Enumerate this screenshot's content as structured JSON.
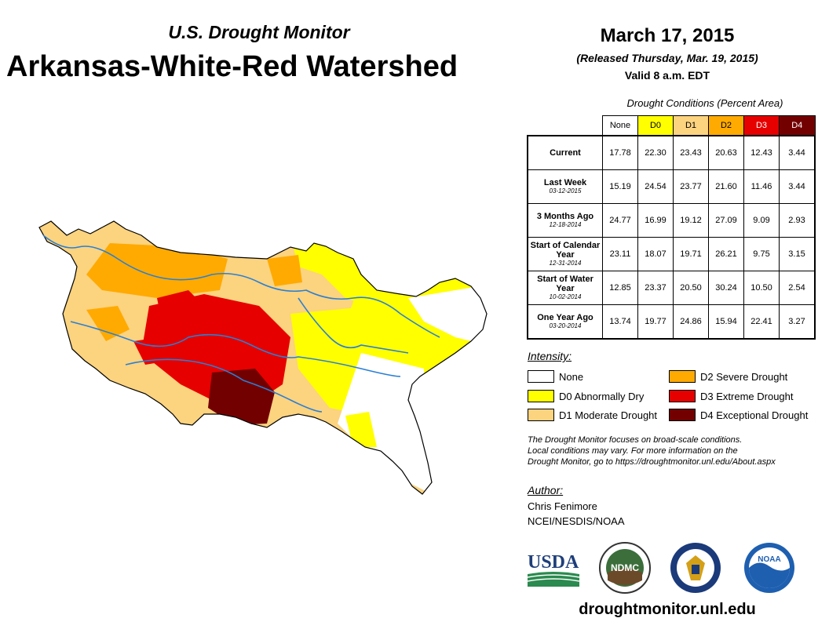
{
  "header": {
    "subtitle": "U.S. Drought Monitor",
    "title": "Arkansas-White-Red Watershed",
    "date": "March 17, 2015",
    "released": "(Released Thursday, Mar. 19, 2015)",
    "valid": "Valid 8 a.m. EDT"
  },
  "table": {
    "caption": "Drought Conditions (Percent Area)",
    "columns": [
      "None",
      "D0",
      "D1",
      "D2",
      "D3",
      "D4"
    ],
    "column_colors": [
      "#ffffff",
      "#ffff00",
      "#fcd37f",
      "#ffaa00",
      "#e60000",
      "#730000"
    ],
    "rows": [
      {
        "label": "Current",
        "sub": "",
        "values": [
          "17.78",
          "22.30",
          "23.43",
          "20.63",
          "12.43",
          "3.44"
        ]
      },
      {
        "label": "Last Week",
        "sub": "03-12-2015",
        "values": [
          "15.19",
          "24.54",
          "23.77",
          "21.60",
          "11.46",
          "3.44"
        ]
      },
      {
        "label": "3 Months Ago",
        "sub": "12-18-2014",
        "values": [
          "24.77",
          "16.99",
          "19.12",
          "27.09",
          "9.09",
          "2.93"
        ]
      },
      {
        "label": "Start of Calendar Year",
        "sub": "12-31-2014",
        "values": [
          "23.11",
          "18.07",
          "19.71",
          "26.21",
          "9.75",
          "3.15"
        ]
      },
      {
        "label": "Start of Water Year",
        "sub": "10-02-2014",
        "values": [
          "12.85",
          "23.37",
          "20.50",
          "30.24",
          "10.50",
          "2.54"
        ]
      },
      {
        "label": "One Year Ago",
        "sub": "03-20-2014",
        "values": [
          "13.74",
          "19.77",
          "24.86",
          "15.94",
          "22.41",
          "3.27"
        ]
      }
    ]
  },
  "legend": {
    "title": "Intensity:",
    "items": [
      {
        "label": "None",
        "color": "#ffffff"
      },
      {
        "label": "D0 Abnormally Dry",
        "color": "#ffff00"
      },
      {
        "label": "D1 Moderate Drought",
        "color": "#fcd37f"
      },
      {
        "label": "D2 Severe Drought",
        "color": "#ffaa00"
      },
      {
        "label": "D3 Extreme Drought",
        "color": "#e60000"
      },
      {
        "label": "D4 Exceptional Drought",
        "color": "#730000"
      }
    ]
  },
  "note": {
    "line1": "The Drought Monitor focuses on broad-scale conditions.",
    "line2": "Local conditions may vary. For more information on the",
    "line3": "Drought Monitor, go to https://droughtmonitor.unl.edu/About.aspx"
  },
  "author": {
    "title": "Author:",
    "name": "Chris Fenimore",
    "org": "NCEI/NESDIS/NOAA"
  },
  "logos": {
    "usda": "USDA",
    "ndmc": "NDMC",
    "noaa": "NOAA"
  },
  "footer": {
    "url": "droughtmonitor.unl.edu"
  }
}
